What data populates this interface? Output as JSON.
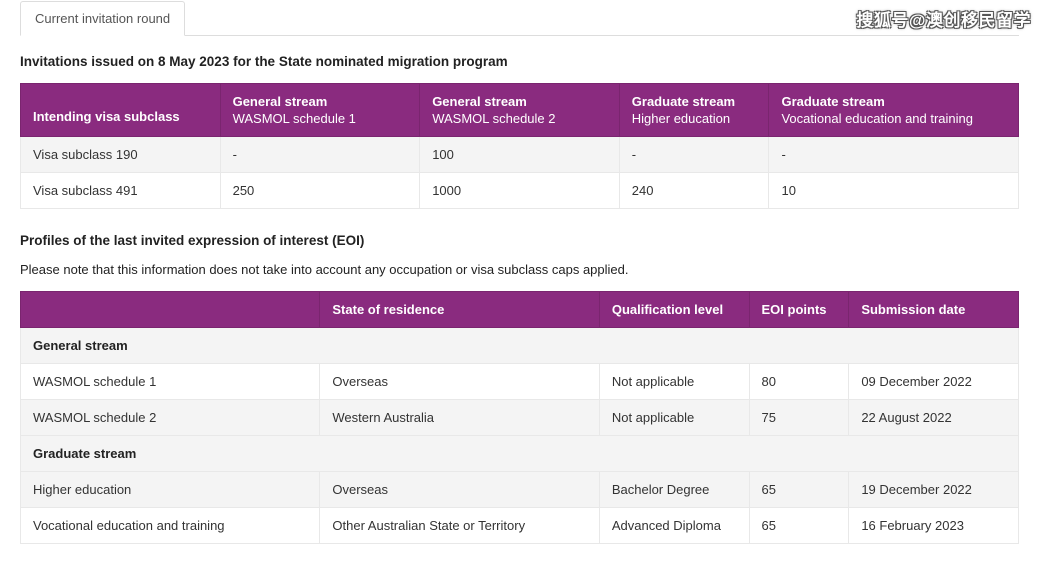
{
  "watermark": "搜狐号@澳创移民留学",
  "tab_label": "Current invitation round",
  "section1": {
    "title": "Invitations issued on 8 May 2023 for the State nominated migration program",
    "headers": {
      "col1": "Intending visa subclass",
      "col2_main": "General stream",
      "col2_sub": "WASMOL schedule 1",
      "col3_main": "General stream",
      "col3_sub": "WASMOL schedule 2",
      "col4_main": "Graduate stream",
      "col4_sub": "Higher education",
      "col5_main": "Graduate stream",
      "col5_sub": "Vocational education and training"
    },
    "rows": [
      {
        "c1": "Visa subclass 190",
        "c2": "-",
        "c3": "100",
        "c4": "-",
        "c5": "-"
      },
      {
        "c1": "Visa subclass 491",
        "c2": "250",
        "c3": "1000",
        "c4": "240",
        "c5": "10"
      }
    ],
    "col_widths": [
      "20%",
      "20%",
      "20%",
      "15%",
      "25%"
    ]
  },
  "section2": {
    "title": "Profiles of the last invited expression of interest (EOI)",
    "note": "Please note that this information does not take into account any occupation or visa subclass caps applied.",
    "headers": {
      "col1": "",
      "col2": "State of residence",
      "col3": "Qualification level",
      "col4": "EOI points",
      "col5": "Submission date"
    },
    "group1_label": "General stream",
    "group1_rows": [
      {
        "c1": "WASMOL schedule 1",
        "c2": "Overseas",
        "c3": "Not applicable",
        "c4": "80",
        "c5": "09 December 2022"
      },
      {
        "c1": "WASMOL schedule 2",
        "c2": "Western Australia",
        "c3": "Not applicable",
        "c4": "75",
        "c5": "22 August 2022"
      }
    ],
    "group2_label": "Graduate stream",
    "group2_rows": [
      {
        "c1": "Higher education",
        "c2": "Overseas",
        "c3": "Bachelor Degree",
        "c4": "65",
        "c5": "19 December 2022"
      },
      {
        "c1": "Vocational education and training",
        "c2": "Other Australian State or Territory",
        "c3": "Advanced Diploma",
        "c4": "65",
        "c5": "16 February 2023"
      }
    ],
    "col_widths": [
      "30%",
      "28%",
      "15%",
      "10%",
      "17%"
    ]
  },
  "colors": {
    "header_bg": "#8a2b7f",
    "header_border": "#7a256f",
    "row_border": "#e8e8e8",
    "stripe_bg": "#f4f4f4",
    "text": "#333333",
    "page_bg": "#ffffff"
  }
}
